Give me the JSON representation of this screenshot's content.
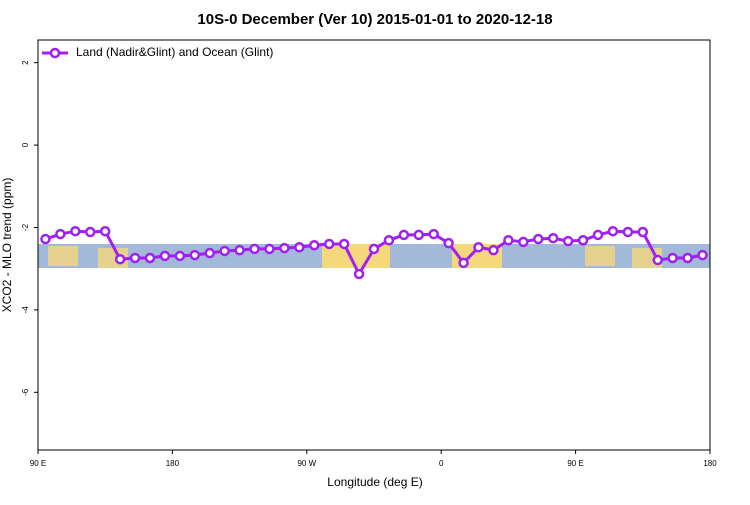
{
  "chart_data": {
    "type": "line",
    "title": "10S-0 December (Ver 10)   2015-01-01 to 2020-12-18",
    "x_label": "Longitude (deg E)",
    "y_label": "XCO2 - MLO trend (ppm)",
    "x": [
      95,
      105,
      115,
      125,
      135,
      145,
      155,
      165,
      175,
      185,
      195,
      205,
      215,
      225,
      235,
      245,
      255,
      265,
      275,
      285,
      295,
      305,
      315,
      325,
      335,
      345,
      355,
      365,
      375,
      385,
      395,
      405,
      415,
      425,
      435,
      445,
      455,
      465,
      475,
      485,
      495,
      505,
      515,
      525,
      535
    ],
    "series": [
      {
        "name": "Land (Nadir&Glint) and Ocean (Glint)",
        "color": "#a020f0",
        "values": [
          -2.28,
          -2.16,
          -2.09,
          -2.11,
          -2.09,
          -2.77,
          -2.74,
          -2.74,
          -2.69,
          -2.69,
          -2.67,
          -2.62,
          -2.57,
          -2.55,
          -2.52,
          -2.52,
          -2.5,
          -2.48,
          -2.43,
          -2.4,
          -2.4,
          -3.13,
          -2.52,
          -2.31,
          -2.18,
          -2.18,
          -2.16,
          -2.38,
          -2.86,
          -2.48,
          -2.55,
          -2.31,
          -2.35,
          -2.28,
          -2.26,
          -2.33,
          -2.31,
          -2.18,
          -2.09,
          -2.11,
          -2.11,
          -2.79,
          -2.74,
          -2.74,
          -2.67
        ]
      }
    ],
    "xlim": [
      90,
      540
    ],
    "xticks": [
      {
        "value": 90,
        "label": "90 E"
      },
      180,
      {
        "value": 270,
        "label": "90 W"
      },
      {
        "value": 360,
        "label": "0"
      },
      {
        "value": 450,
        "label": "90 E"
      },
      {
        "value": 540,
        "label": "180"
      }
    ],
    "ylim": [
      -7.4,
      2.55
    ],
    "yticks": [
      -6,
      -4,
      -2,
      0,
      2
    ],
    "legend": "top-left"
  }
}
